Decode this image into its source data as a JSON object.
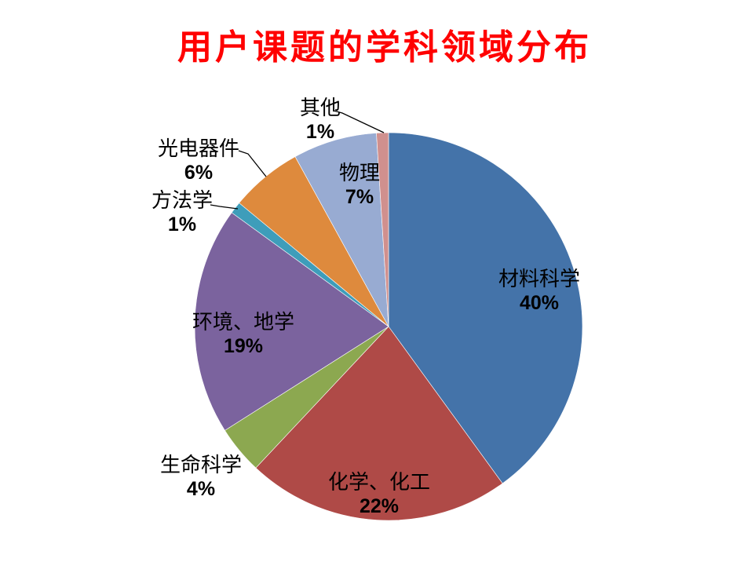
{
  "title": {
    "text": "用户课题的学科领域分布",
    "color": "#FF0000"
  },
  "chart_data": {
    "type": "pie",
    "title": "用户课题的学科领域分布",
    "start_angle_deg": 0,
    "direction": "clockwise",
    "legend": "none",
    "labels_show": "category name and percentage",
    "slices": [
      {
        "label": "材料科学",
        "value": 40,
        "pct_label": "40%",
        "color": "#4473A9",
        "label_placement": "inside"
      },
      {
        "label": "化学、化工",
        "value": 22,
        "pct_label": "22%",
        "color": "#AF4A47",
        "label_placement": "inside"
      },
      {
        "label": "生命科学",
        "value": 4,
        "pct_label": "4%",
        "color": "#8CA850",
        "label_placement": "outside"
      },
      {
        "label": "环境、地学",
        "value": 19,
        "pct_label": "19%",
        "color": "#7B639E",
        "label_placement": "inside"
      },
      {
        "label": "方法学",
        "value": 1,
        "pct_label": "1%",
        "color": "#3E9DBA",
        "label_placement": "outside-leader-line"
      },
      {
        "label": "光电器件",
        "value": 6,
        "pct_label": "6%",
        "color": "#DE8A3D",
        "label_placement": "outside-leader-line"
      },
      {
        "label": "物理",
        "value": 7,
        "pct_label": "7%",
        "color": "#98ABD2",
        "label_placement": "inside"
      },
      {
        "label": "其他",
        "value": 1,
        "pct_label": "1%",
        "color": "#D0908E",
        "label_placement": "outside-leader-line"
      }
    ]
  }
}
